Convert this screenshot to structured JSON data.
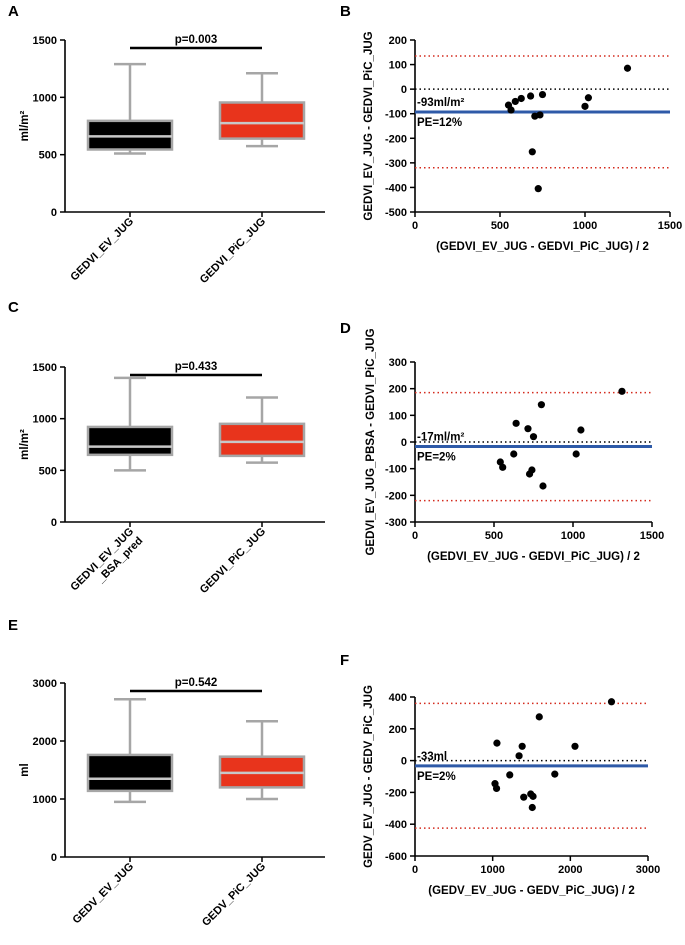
{
  "colors": {
    "black_box": "#000000",
    "red_box": "#e8341c",
    "whisker": "#a6a6a6",
    "median_line": "#c8c8c8",
    "bias_line": "#2e5aa8",
    "loa_line": "#d42b1e",
    "zero_line": "#000000"
  },
  "chart_data": [
    {
      "id": "A",
      "letter": "A",
      "type": "box",
      "ylabel": "ml/m²",
      "ylim": [
        0,
        1500
      ],
      "yticks": [
        0,
        500,
        1000,
        1500
      ],
      "pvalue_label": "p=0.003",
      "categories": [
        "GEDVI_EV_JUG",
        "GEDVI_PiC_JUG"
      ],
      "boxes": [
        {
          "name": "GEDVI_EV_JUG",
          "fill": "black",
          "min": 510,
          "q1": 545,
          "median": 660,
          "q3": 795,
          "max": 1290
        },
        {
          "name": "GEDVI_PiC_JUG",
          "fill": "red",
          "min": 575,
          "q1": 640,
          "median": 775,
          "q3": 955,
          "max": 1210
        }
      ]
    },
    {
      "id": "B",
      "letter": "B",
      "type": "scatter",
      "xlabel": "(GEDVI_EV_JUG - GEDVI_PiC_JUG) / 2",
      "ylabel": "GEDVI_EV_JUG - GEDVI_PiC_JUG",
      "xlim": [
        0,
        1500
      ],
      "xticks": [
        0,
        500,
        1000,
        1500
      ],
      "ylim": [
        -500,
        200
      ],
      "yticks": [
        -500,
        -400,
        -300,
        -200,
        -100,
        0,
        100,
        200
      ],
      "bias": -93,
      "loa_upper": 135,
      "loa_lower": -320,
      "bias_label": "-93ml/m²",
      "pe_label": "PE=12%",
      "points": [
        [
          550,
          -65
        ],
        [
          565,
          -85
        ],
        [
          590,
          -50
        ],
        [
          625,
          -38
        ],
        [
          680,
          -28
        ],
        [
          705,
          -110
        ],
        [
          735,
          -105
        ],
        [
          750,
          -22
        ],
        [
          690,
          -255
        ],
        [
          725,
          -405
        ],
        [
          1000,
          -70
        ],
        [
          1020,
          -35
        ],
        [
          1250,
          85
        ]
      ]
    },
    {
      "id": "C",
      "letter": "C",
      "type": "box",
      "ylabel": "ml/m²",
      "ylim": [
        0,
        1500
      ],
      "yticks": [
        0,
        500,
        1000,
        1500
      ],
      "pvalue_label": "p=0.433",
      "categories": [
        "GEDVI_EV_JUG\n_BSA_pred",
        "GEDVI_PiC_JUG"
      ],
      "boxes": [
        {
          "name": "GEDVI_EV_JUG_BSA_pred",
          "fill": "black",
          "min": 500,
          "q1": 650,
          "median": 730,
          "q3": 920,
          "max": 1395
        },
        {
          "name": "GEDVI_PiC_JUG",
          "fill": "red",
          "min": 575,
          "q1": 640,
          "median": 775,
          "q3": 950,
          "max": 1205
        }
      ]
    },
    {
      "id": "D",
      "letter": "D",
      "type": "scatter",
      "xlabel": "(GEDVI_EV_JUG - GEDVI_PiC_JUG) / 2",
      "ylabel": "GEDVI_EV_JUG_PBSA - GEDVI_PiC_JUG",
      "xlim": [
        0,
        1500
      ],
      "xticks": [
        0,
        500,
        1000,
        1500
      ],
      "ylim": [
        -300,
        300
      ],
      "yticks": [
        -300,
        -200,
        -100,
        0,
        100,
        200,
        300
      ],
      "bias": -17,
      "loa_upper": 185,
      "loa_lower": -220,
      "bias_label": "-17ml/m²",
      "pe_label": "PE=2%",
      "points": [
        [
          540,
          -75
        ],
        [
          555,
          -95
        ],
        [
          625,
          -45
        ],
        [
          640,
          70
        ],
        [
          715,
          50
        ],
        [
          725,
          -120
        ],
        [
          740,
          -105
        ],
        [
          750,
          20
        ],
        [
          800,
          140
        ],
        [
          810,
          -165
        ],
        [
          1020,
          -45
        ],
        [
          1050,
          45
        ],
        [
          1310,
          190
        ]
      ]
    },
    {
      "id": "E",
      "letter": "E",
      "type": "box",
      "ylabel": "ml",
      "ylim": [
        0,
        3000
      ],
      "yticks": [
        0,
        1000,
        2000,
        3000
      ],
      "pvalue_label": "p=0.542",
      "categories": [
        "GEDV_EV_JUG",
        "GEDV_PiC_JUG"
      ],
      "boxes": [
        {
          "name": "GEDV_EV_JUG",
          "fill": "black",
          "min": 950,
          "q1": 1140,
          "median": 1350,
          "q3": 1760,
          "max": 2720
        },
        {
          "name": "GEDV_PiC_JUG",
          "fill": "red",
          "min": 1000,
          "q1": 1200,
          "median": 1450,
          "q3": 1730,
          "max": 2340
        }
      ]
    },
    {
      "id": "F",
      "letter": "F",
      "type": "scatter",
      "xlabel": "(GEDV_EV_JUG - GEDV_PiC_JUG) / 2",
      "ylabel": "GEDV_EV_JUG - GEDV_PiC_JUG",
      "xlim": [
        0,
        3000
      ],
      "xticks": [
        0,
        1000,
        2000,
        3000
      ],
      "ylim": [
        -600,
        400
      ],
      "yticks": [
        -600,
        -400,
        -200,
        0,
        200,
        400
      ],
      "bias": -33,
      "loa_upper": 360,
      "loa_lower": -425,
      "bias_label": "-33ml",
      "pe_label": "PE=2%",
      "points": [
        [
          1030,
          -145
        ],
        [
          1050,
          -175
        ],
        [
          1055,
          110
        ],
        [
          1220,
          -90
        ],
        [
          1340,
          30
        ],
        [
          1380,
          90
        ],
        [
          1400,
          -230
        ],
        [
          1490,
          -210
        ],
        [
          1510,
          -295
        ],
        [
          1520,
          -225
        ],
        [
          1600,
          275
        ],
        [
          1800,
          -85
        ],
        [
          2060,
          90
        ],
        [
          2530,
          370
        ]
      ]
    }
  ]
}
